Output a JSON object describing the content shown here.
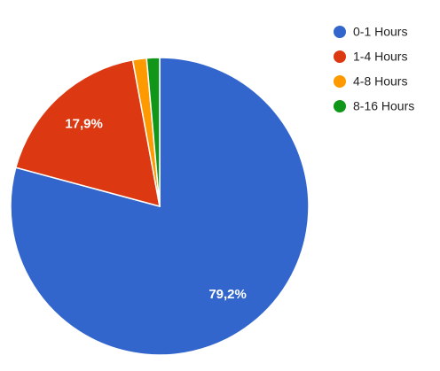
{
  "chart_data": {
    "type": "pie",
    "categories": [
      "0-1 Hours",
      "1-4 Hours",
      "4-8 Hours",
      "8-16 Hours"
    ],
    "values": [
      79.2,
      17.9,
      1.5,
      1.4
    ],
    "value_labels": [
      "79,2%",
      "17,9%",
      null,
      null
    ],
    "colors": [
      "#3366cc",
      "#dc3912",
      "#ff9900",
      "#109618"
    ],
    "legend": "right"
  }
}
